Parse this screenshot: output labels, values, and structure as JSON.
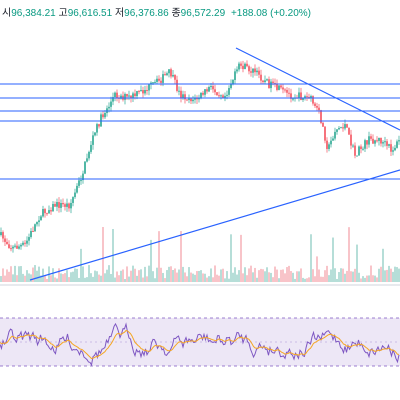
{
  "header": {
    "open_label": "시",
    "open_value": "96,384.21",
    "high_label": "고",
    "high_value": "96,616.51",
    "low_label": "저",
    "low_value": "96,376.86",
    "close_label": "종",
    "close_value": "96,572.29",
    "change": "+188.08 (+0.20%)"
  },
  "colors": {
    "up": "#089981",
    "down": "#f23645",
    "trendline": "#2962ff",
    "rsi_line": "#7e57c2",
    "rsi_ma": "#f5a623",
    "rsi_band": "#ede7f6",
    "rsi_band_border": "#7e57c2"
  },
  "chart_data": [
    {
      "type": "candlestick",
      "title": "",
      "ohlc_last": {
        "open": 96384.21,
        "high": 96616.51,
        "low": 96376.86,
        "close": 96572.29,
        "change": 188.08,
        "change_pct": 0.2
      },
      "price_axis_visible": false,
      "horizontal_levels": 5,
      "trendlines": [
        "rising support line",
        "falling resistance line"
      ],
      "volume_panel": true,
      "grid": false
    },
    {
      "type": "line",
      "indicator": "RSI",
      "series": [
        {
          "name": "",
          "role": "rsi"
        },
        {
          "name": "",
          "role": "moving average"
        }
      ],
      "band": "shaded between upper and lower dashed levels",
      "axis_visible": false
    }
  ]
}
